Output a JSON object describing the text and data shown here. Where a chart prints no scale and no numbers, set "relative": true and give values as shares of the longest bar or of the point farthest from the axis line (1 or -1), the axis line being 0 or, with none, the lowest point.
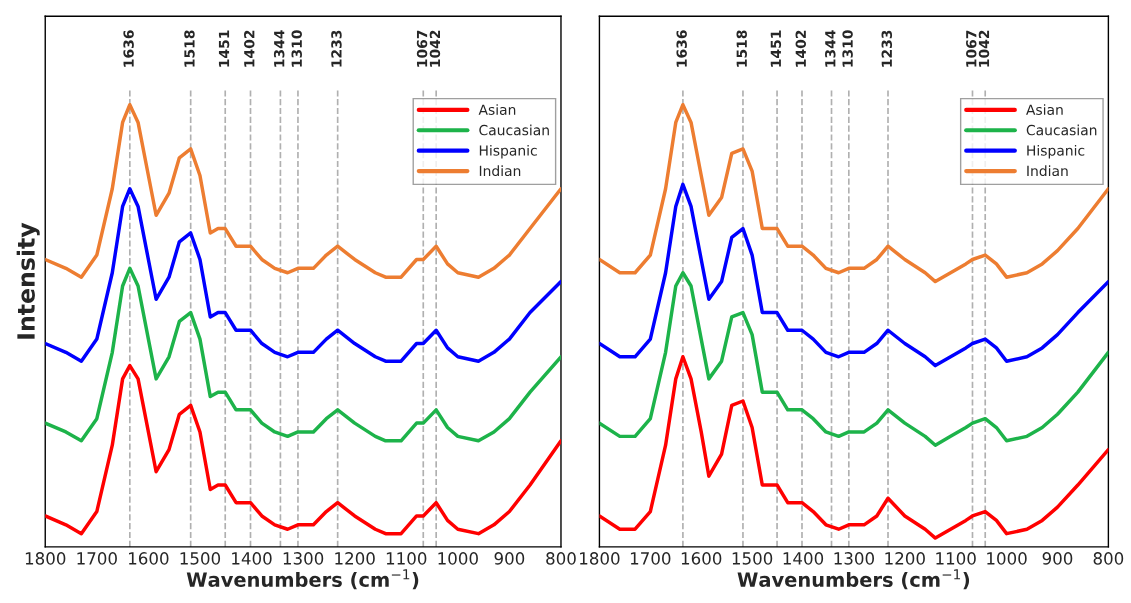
{
  "chart_data": [
    {
      "type": "line",
      "relative": true,
      "xlabel": "Wavenumbers (cm$^{−1}$)",
      "ylabel": "Intensity",
      "xlim": [
        1800,
        800
      ],
      "xticks": [
        1800,
        1700,
        1600,
        1500,
        1400,
        1300,
        1200,
        1100,
        1000,
        900,
        800
      ],
      "tick_labels": "x",
      "grid": false,
      "legend": "top right",
      "line_style": "solid",
      "marker": "none",
      "x": [
        1800,
        1760,
        1730,
        1700,
        1670,
        1650,
        1636,
        1620,
        1600,
        1585,
        1560,
        1540,
        1518,
        1500,
        1480,
        1465,
        1451,
        1430,
        1402,
        1380,
        1355,
        1330,
        1310,
        1280,
        1255,
        1233,
        1200,
        1160,
        1140,
        1110,
        1080,
        1067,
        1042,
        1020,
        1000,
        960,
        930,
        900,
        860,
        800
      ],
      "series": [
        {
          "name": "Asian",
          "color": "#ff0000",
          "values": [
            0.07,
            0.05,
            0.03,
            0.08,
            0.23,
            0.38,
            0.41,
            0.38,
            0.26,
            0.17,
            0.22,
            0.3,
            0.32,
            0.26,
            0.13,
            0.14,
            0.14,
            0.1,
            0.1,
            0.07,
            0.05,
            0.04,
            0.05,
            0.05,
            0.08,
            0.1,
            0.07,
            0.04,
            0.03,
            0.03,
            0.07,
            0.07,
            0.1,
            0.06,
            0.04,
            0.03,
            0.05,
            0.08,
            0.14,
            0.24
          ]
        },
        {
          "name": "Caucasian",
          "color": "#1db34a",
          "values": [
            0.28,
            0.26,
            0.24,
            0.29,
            0.44,
            0.59,
            0.63,
            0.59,
            0.47,
            0.38,
            0.43,
            0.51,
            0.53,
            0.47,
            0.34,
            0.35,
            0.35,
            0.31,
            0.31,
            0.28,
            0.26,
            0.25,
            0.26,
            0.26,
            0.29,
            0.31,
            0.28,
            0.25,
            0.24,
            0.24,
            0.28,
            0.28,
            0.31,
            0.27,
            0.25,
            0.24,
            0.26,
            0.29,
            0.35,
            0.43
          ]
        },
        {
          "name": "Hispanic",
          "color": "#0000ff",
          "values": [
            0.46,
            0.44,
            0.42,
            0.47,
            0.62,
            0.77,
            0.81,
            0.77,
            0.65,
            0.56,
            0.61,
            0.69,
            0.71,
            0.65,
            0.52,
            0.53,
            0.53,
            0.49,
            0.49,
            0.46,
            0.44,
            0.43,
            0.44,
            0.44,
            0.47,
            0.49,
            0.46,
            0.43,
            0.42,
            0.42,
            0.46,
            0.46,
            0.49,
            0.45,
            0.43,
            0.42,
            0.44,
            0.47,
            0.53,
            0.6
          ]
        },
        {
          "name": "Indian",
          "color": "#ed7d31",
          "values": [
            0.65,
            0.63,
            0.61,
            0.66,
            0.81,
            0.96,
            1.0,
            0.96,
            0.84,
            0.75,
            0.8,
            0.88,
            0.9,
            0.84,
            0.71,
            0.72,
            0.72,
            0.68,
            0.68,
            0.65,
            0.63,
            0.62,
            0.63,
            0.63,
            0.66,
            0.68,
            0.65,
            0.62,
            0.61,
            0.61,
            0.65,
            0.65,
            0.68,
            0.64,
            0.62,
            0.61,
            0.63,
            0.66,
            0.72,
            0.81
          ]
        }
      ],
      "ref_lines": [
        {
          "axis": "x",
          "value": 1636,
          "label": "1636",
          "color": "#b0b0b0",
          "line_style": "dashed"
        },
        {
          "axis": "x",
          "value": 1518,
          "label": "1518",
          "color": "#b0b0b0",
          "line_style": "dashed"
        },
        {
          "axis": "x",
          "value": 1451,
          "label": "1451",
          "color": "#b0b0b0",
          "line_style": "dashed"
        },
        {
          "axis": "x",
          "value": 1402,
          "label": "1402",
          "color": "#b0b0b0",
          "line_style": "dashed"
        },
        {
          "axis": "x",
          "value": 1344,
          "label": "1344",
          "color": "#b0b0b0",
          "line_style": "dashed"
        },
        {
          "axis": "x",
          "value": 1310,
          "label": "1310",
          "color": "#b0b0b0",
          "line_style": "dashed"
        },
        {
          "axis": "x",
          "value": 1233,
          "label": "1233",
          "color": "#b0b0b0",
          "line_style": "dashed"
        },
        {
          "axis": "x",
          "value": 1067,
          "label": "1067",
          "color": "#b0b0b0",
          "line_style": "dashed"
        },
        {
          "axis": "x",
          "value": 1042,
          "label": "1042",
          "color": "#b0b0b0",
          "line_style": "dashed"
        }
      ]
    },
    {
      "type": "line",
      "relative": true,
      "xlabel": "Wavenumbers (cm$^{−1}$)",
      "xlim": [
        1800,
        800
      ],
      "xticks": [
        1800,
        1700,
        1600,
        1500,
        1400,
        1300,
        1200,
        1100,
        1000,
        900,
        800
      ],
      "tick_labels": "x",
      "grid": false,
      "legend": "top right",
      "line_style": "solid",
      "marker": "none",
      "x": [
        1800,
        1760,
        1730,
        1700,
        1670,
        1650,
        1636,
        1620,
        1600,
        1585,
        1560,
        1540,
        1518,
        1500,
        1480,
        1465,
        1451,
        1430,
        1402,
        1380,
        1355,
        1330,
        1310,
        1280,
        1255,
        1233,
        1200,
        1160,
        1140,
        1110,
        1080,
        1067,
        1042,
        1020,
        1000,
        960,
        930,
        900,
        860,
        800
      ],
      "series": [
        {
          "name": "Asian",
          "color": "#ff0000",
          "values": [
            0.07,
            0.04,
            0.04,
            0.08,
            0.23,
            0.38,
            0.43,
            0.38,
            0.26,
            0.16,
            0.21,
            0.32,
            0.33,
            0.27,
            0.14,
            0.14,
            0.14,
            0.1,
            0.1,
            0.08,
            0.05,
            0.04,
            0.05,
            0.05,
            0.07,
            0.11,
            0.07,
            0.04,
            0.02,
            0.04,
            0.06,
            0.07,
            0.08,
            0.06,
            0.03,
            0.04,
            0.06,
            0.09,
            0.14,
            0.22
          ]
        },
        {
          "name": "Caucasian",
          "color": "#1db34a",
          "values": [
            0.28,
            0.25,
            0.25,
            0.29,
            0.44,
            0.59,
            0.62,
            0.59,
            0.47,
            0.38,
            0.42,
            0.52,
            0.53,
            0.48,
            0.35,
            0.35,
            0.35,
            0.31,
            0.31,
            0.29,
            0.26,
            0.25,
            0.26,
            0.26,
            0.28,
            0.31,
            0.28,
            0.25,
            0.23,
            0.25,
            0.27,
            0.28,
            0.29,
            0.27,
            0.24,
            0.25,
            0.27,
            0.3,
            0.35,
            0.44
          ]
        },
        {
          "name": "Hispanic",
          "color": "#0000ff",
          "values": [
            0.46,
            0.43,
            0.43,
            0.47,
            0.62,
            0.77,
            0.82,
            0.77,
            0.65,
            0.56,
            0.6,
            0.7,
            0.72,
            0.66,
            0.53,
            0.53,
            0.53,
            0.49,
            0.49,
            0.47,
            0.44,
            0.43,
            0.44,
            0.44,
            0.46,
            0.49,
            0.46,
            0.43,
            0.41,
            0.43,
            0.45,
            0.46,
            0.47,
            0.45,
            0.42,
            0.43,
            0.45,
            0.48,
            0.53,
            0.6
          ]
        },
        {
          "name": "Indian",
          "color": "#ed7d31",
          "values": [
            0.65,
            0.62,
            0.62,
            0.66,
            0.81,
            0.96,
            1.0,
            0.96,
            0.84,
            0.75,
            0.79,
            0.89,
            0.9,
            0.85,
            0.72,
            0.72,
            0.72,
            0.68,
            0.68,
            0.66,
            0.63,
            0.62,
            0.63,
            0.63,
            0.65,
            0.68,
            0.65,
            0.62,
            0.6,
            0.62,
            0.64,
            0.65,
            0.66,
            0.64,
            0.61,
            0.62,
            0.64,
            0.67,
            0.72,
            0.81
          ]
        }
      ],
      "ref_lines": [
        {
          "axis": "x",
          "value": 1636,
          "label": "1636",
          "color": "#b0b0b0",
          "line_style": "dashed"
        },
        {
          "axis": "x",
          "value": 1518,
          "label": "1518",
          "color": "#b0b0b0",
          "line_style": "dashed"
        },
        {
          "axis": "x",
          "value": 1451,
          "label": "1451",
          "color": "#b0b0b0",
          "line_style": "dashed"
        },
        {
          "axis": "x",
          "value": 1402,
          "label": "1402",
          "color": "#b0b0b0",
          "line_style": "dashed"
        },
        {
          "axis": "x",
          "value": 1344,
          "label": "1344",
          "color": "#b0b0b0",
          "line_style": "dashed"
        },
        {
          "axis": "x",
          "value": 1310,
          "label": "1310",
          "color": "#b0b0b0",
          "line_style": "dashed"
        },
        {
          "axis": "x",
          "value": 1233,
          "label": "1233",
          "color": "#b0b0b0",
          "line_style": "dashed"
        },
        {
          "axis": "x",
          "value": 1067,
          "label": "1067",
          "color": "#b0b0b0",
          "line_style": "dashed"
        },
        {
          "axis": "x",
          "value": 1042,
          "label": "1042",
          "color": "#b0b0b0",
          "line_style": "dashed"
        }
      ]
    }
  ]
}
